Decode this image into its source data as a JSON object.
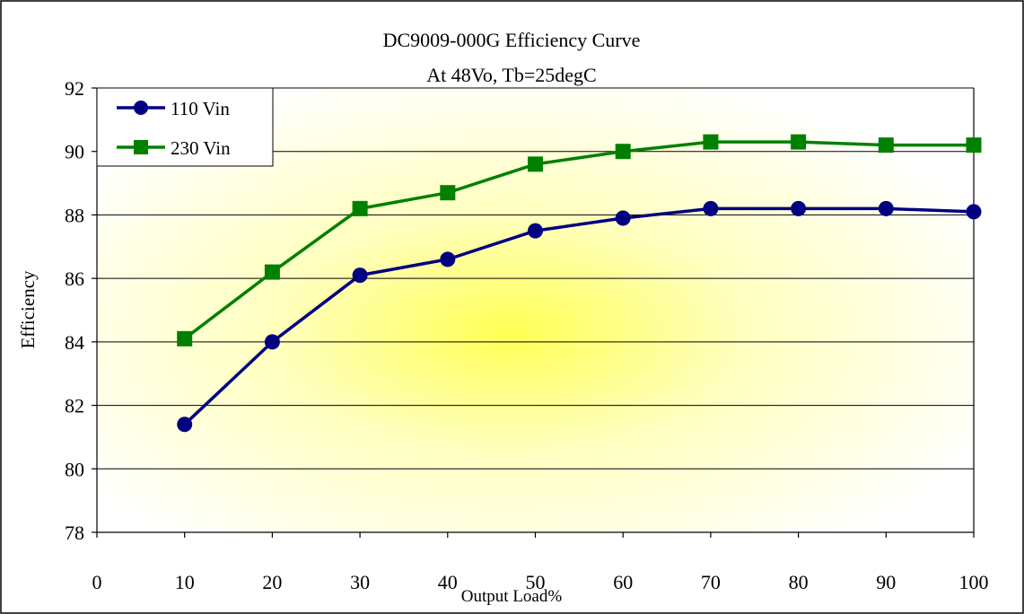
{
  "chart_data": {
    "type": "line",
    "title": "DC9009-000G Efficiency Curve",
    "subtitle": "At 48Vo, Tb=25degC",
    "xlabel": "Output Load%",
    "ylabel": "Efficiency",
    "xlim": [
      0,
      100
    ],
    "ylim": [
      78,
      92
    ],
    "x_ticks": [
      "0",
      "10",
      "20",
      "30",
      "40",
      "50",
      "60",
      "70",
      "80",
      "90",
      "100"
    ],
    "y_ticks": [
      "78",
      "80",
      "82",
      "84",
      "86",
      "88",
      "90",
      "92"
    ],
    "grid": "horizontal",
    "legend_position": "top-left",
    "x": [
      10,
      20,
      30,
      40,
      50,
      60,
      70,
      80,
      90,
      100
    ],
    "series": [
      {
        "name": "110 Vin",
        "marker": "circle",
        "color": "#000080",
        "values": [
          81.4,
          84.0,
          86.1,
          86.6,
          87.5,
          87.9,
          88.2,
          88.2,
          88.2,
          88.1
        ]
      },
      {
        "name": "230 Vin",
        "marker": "square",
        "color": "#008000",
        "values": [
          84.1,
          86.2,
          88.2,
          88.7,
          89.6,
          90.0,
          90.3,
          90.3,
          90.2,
          90.2
        ]
      }
    ]
  }
}
